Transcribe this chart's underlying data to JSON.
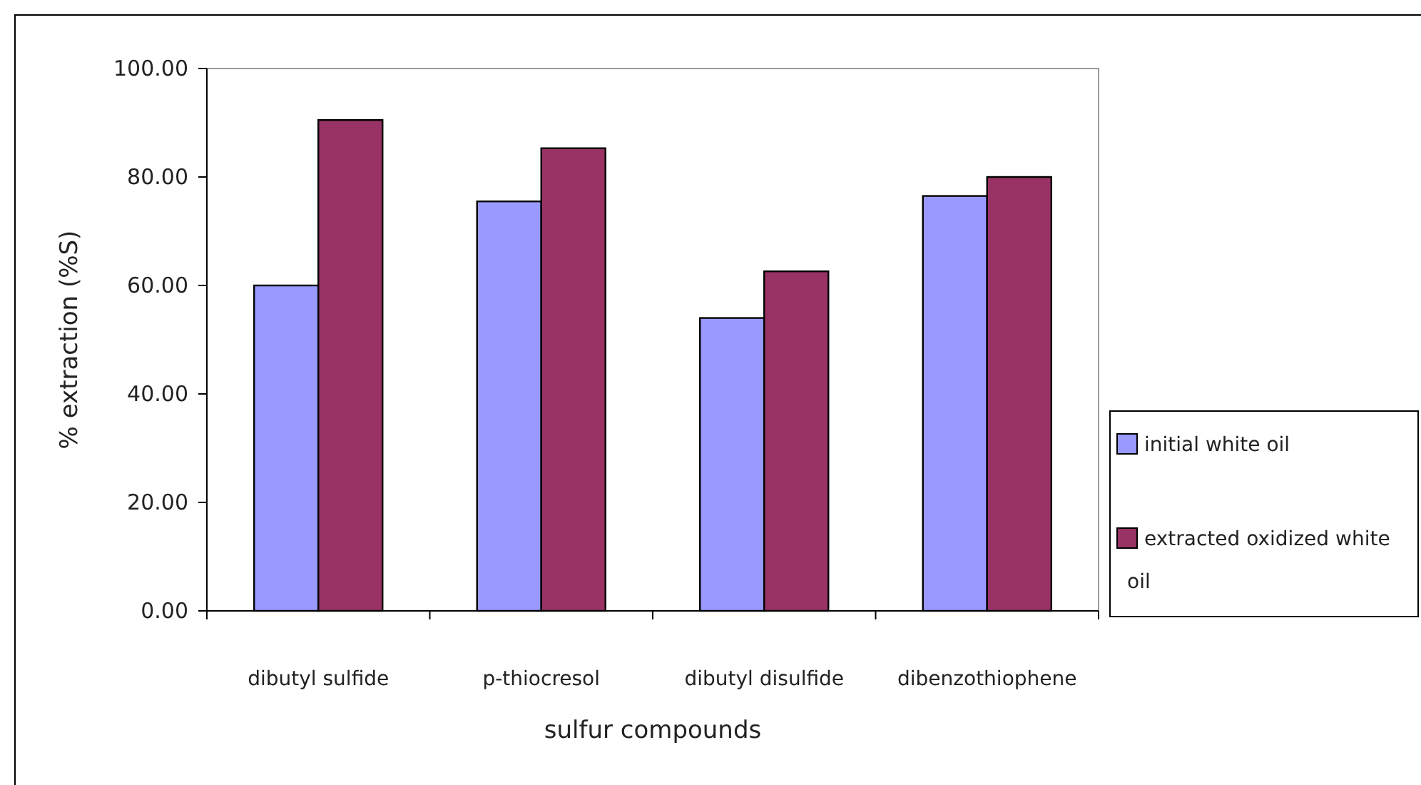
{
  "chart_data": {
    "type": "bar",
    "xlabel": "sulfur compounds",
    "ylabel": "% extraction (%S)",
    "categories": [
      "dibutyl sulfide",
      "p-thiocresol",
      "dibutyl disulfide",
      "dibenzothiophene"
    ],
    "series": [
      {
        "name": "initial white oil",
        "color": "#9999ff",
        "values": [
          60,
          75.5,
          54,
          76.5
        ]
      },
      {
        "name": "extracted oxidized white oil",
        "color": "#993366",
        "values": [
          90.5,
          85.3,
          62.6,
          80
        ]
      }
    ],
    "ylim": [
      0,
      100
    ],
    "yticks": [
      {
        "value": 0,
        "label": "0.00"
      },
      {
        "value": 20,
        "label": "20.00"
      },
      {
        "value": 40,
        "label": "40.00"
      },
      {
        "value": 60,
        "label": "60.00"
      },
      {
        "value": 80,
        "label": "80.00"
      },
      {
        "value": 100,
        "label": "100.00"
      }
    ],
    "grid": false,
    "legend": "right"
  }
}
